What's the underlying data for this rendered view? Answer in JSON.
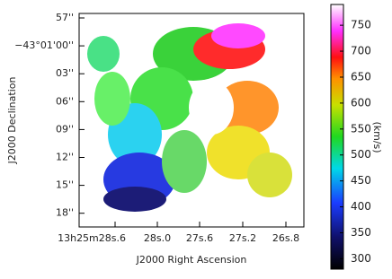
{
  "chart_data": {
    "type": "image",
    "xlabel": "J2000 Right Ascension",
    "ylabel": "J2000 Declination",
    "x_tick_labels": [
      "13h25m28s.6",
      "28s.0",
      "27s.6",
      "27s.2",
      "26s.8"
    ],
    "y_tick_labels": [
      "57''",
      "−43°01'00''",
      "03''",
      "06''",
      "09''",
      "12''",
      "15''",
      "18''"
    ],
    "colorbar": {
      "label": "(km/s)",
      "clim": [
        280,
        790
      ],
      "ticks": [
        300,
        350,
        400,
        450,
        500,
        550,
        600,
        650,
        700,
        750
      ]
    }
  }
}
